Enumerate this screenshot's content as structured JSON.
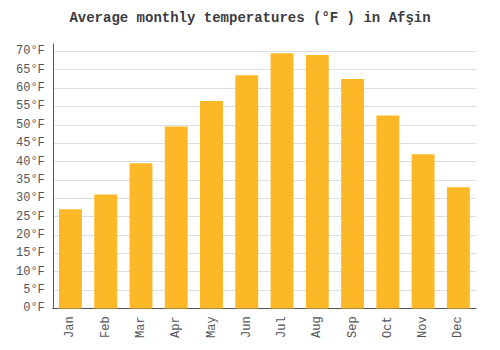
{
  "chart_data": {
    "type": "bar",
    "title": "Average monthly temperatures (°F ) in Afşin",
    "categories": [
      "Jan",
      "Feb",
      "Mar",
      "Apr",
      "May",
      "Jun",
      "Jul",
      "Aug",
      "Sep",
      "Oct",
      "Nov",
      "Dec"
    ],
    "values": [
      27,
      31,
      39.5,
      49.5,
      56.5,
      63.5,
      69.5,
      69,
      62.5,
      52.5,
      42,
      33
    ],
    "color": "#FDB827",
    "ylim": [
      0,
      72
    ],
    "yticks": [
      {
        "value": 0,
        "label": "0°F"
      },
      {
        "value": 5,
        "label": "5°F"
      },
      {
        "value": 10,
        "label": "10°F"
      },
      {
        "value": 15,
        "label": "15°F"
      },
      {
        "value": 20,
        "label": "20°F"
      },
      {
        "value": 25,
        "label": "25°F"
      },
      {
        "value": 30,
        "label": "30°F"
      },
      {
        "value": 35,
        "label": "35°F"
      },
      {
        "value": 40,
        "label": "40°F"
      },
      {
        "value": 45,
        "label": "45°F"
      },
      {
        "value": 50,
        "label": "50°F"
      },
      {
        "value": 55,
        "label": "55°F"
      },
      {
        "value": 60,
        "label": "60°F"
      },
      {
        "value": 65,
        "label": "65°F"
      },
      {
        "value": 70,
        "label": "70°F"
      }
    ],
    "grid": true
  }
}
